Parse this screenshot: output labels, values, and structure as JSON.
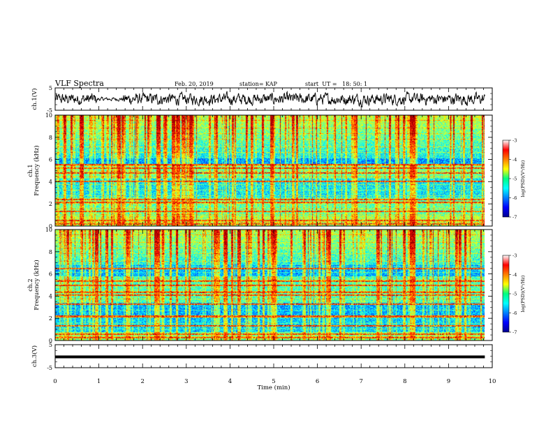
{
  "header": {
    "title": "VLF Spectra",
    "date": "Feb. 20, 2019",
    "station": "station= KAP",
    "start": "start  UT =   18: 50: 1"
  },
  "chart_data": [
    {
      "type": "line",
      "panel": "ch1-waveform",
      "ylabel": "ch.1(V)",
      "ylim": [
        -5,
        5
      ],
      "yticks": [
        "5",
        "-5"
      ],
      "xlim": [
        0,
        10
      ],
      "color": "#000000"
    },
    {
      "type": "heatmap",
      "panel": "ch1-spectrogram",
      "ylabel": "ch.1\nFrequency (kHz)",
      "ylim": [
        0,
        10
      ],
      "yticks": [
        "0",
        "2",
        "4",
        "6",
        "8",
        "10"
      ],
      "xlim": [
        0,
        10
      ],
      "x_data_end_min": 9.83,
      "colorbar": {
        "label": "log(PSD)(V²/Hz)",
        "range": [
          -7,
          -3
        ],
        "ticks": [
          "-3",
          "-4",
          "-5",
          "-6",
          "-7"
        ],
        "colormap": "jet"
      },
      "bright_line_freqs_khz": [
        0.2,
        0.55,
        1.35,
        2.15,
        2.4,
        4.05,
        4.8,
        5.25,
        5.55
      ]
    },
    {
      "type": "heatmap",
      "panel": "ch2-spectrogram",
      "ylabel": "ch.2\nFrequency (kHz)",
      "ylim": [
        0,
        10
      ],
      "yticks": [
        "0",
        "2",
        "4",
        "6",
        "8",
        "10"
      ],
      "xlim": [
        0,
        10
      ],
      "x_data_end_min": 9.83,
      "colorbar": {
        "label": "log(PSD)(V²/Hz)",
        "range": [
          -7,
          -3
        ],
        "ticks": [
          "-3",
          "-4",
          "-5",
          "-6",
          "-7"
        ],
        "colormap": "jet"
      },
      "bright_line_freqs_khz": [
        0.3,
        0.6,
        1.35,
        2.2,
        3.3,
        4.1,
        4.35,
        5.0,
        5.4,
        6.5
      ]
    },
    {
      "type": "line",
      "panel": "ch3-waveform",
      "ylabel": "ch.3(V)",
      "ylim": [
        -5,
        5
      ],
      "yticks": [
        "5",
        "-5"
      ],
      "xlim": [
        0,
        10
      ],
      "constant_value": -0.3,
      "color": "#000000"
    }
  ],
  "xaxis": {
    "label": "Time (min)",
    "ticks": [
      "0",
      "1",
      "2",
      "3",
      "4",
      "5",
      "6",
      "7",
      "8",
      "9",
      "10"
    ]
  }
}
